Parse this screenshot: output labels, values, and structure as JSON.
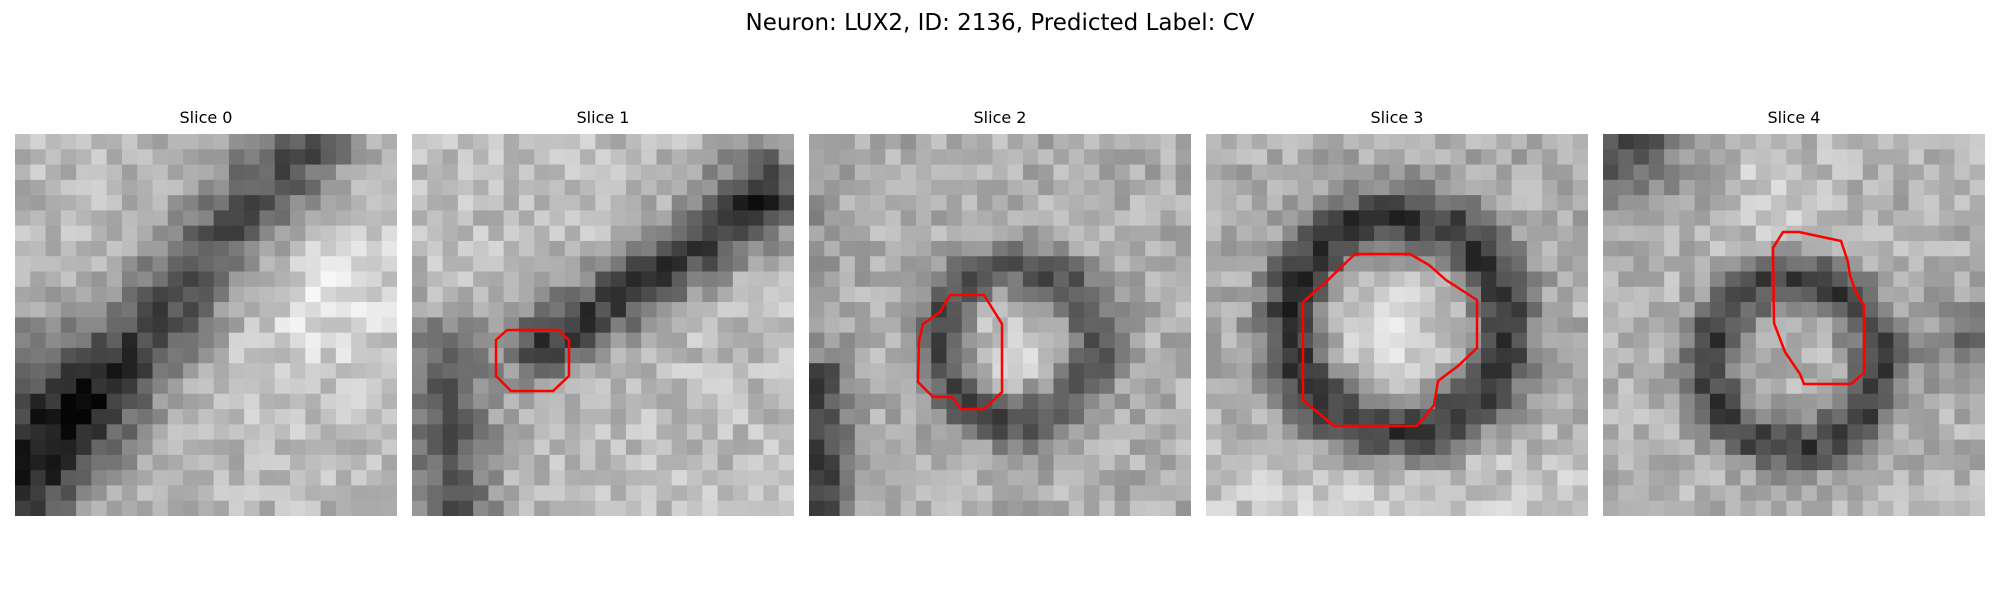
{
  "figure": {
    "title": "Neuron: LUX2, ID: 2136, Predicted Label: CV"
  },
  "contour_color": "#ff0000",
  "panels": [
    {
      "title": "Slice 0",
      "has_contour": false
    },
    {
      "title": "Slice 1",
      "has_contour": true
    },
    {
      "title": "Slice 2",
      "has_contour": true
    },
    {
      "title": "Slice 3",
      "has_contour": true
    },
    {
      "title": "Slice 4",
      "has_contour": true
    }
  ]
}
